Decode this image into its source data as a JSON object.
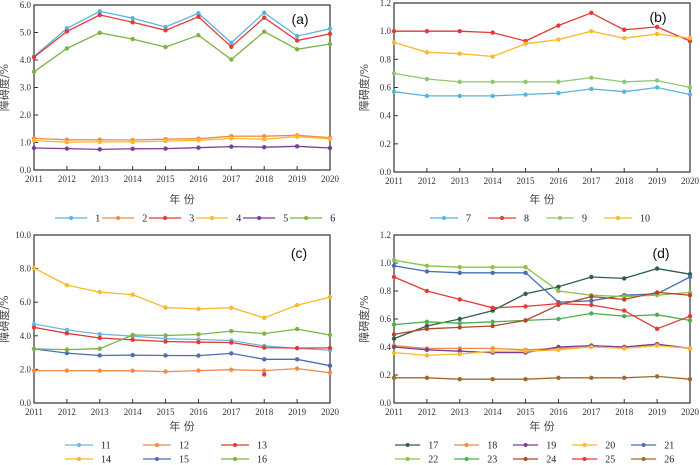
{
  "chart_data": [
    {
      "type": "line",
      "panel_label": "(a)",
      "xlabel": "年 份",
      "ylabel": "障碍度/%",
      "ylim": [
        0,
        6
      ],
      "yticks": [
        "0.0",
        "1.0",
        "2.0",
        "3.0",
        "4.0",
        "5.0",
        "6.0"
      ],
      "ytick_values": [
        0,
        1,
        2,
        3,
        4,
        5,
        6
      ],
      "categories": [
        "2011",
        "2012",
        "2013",
        "2014",
        "2015",
        "2016",
        "2017",
        "2018",
        "2019",
        "2020"
      ],
      "legend_position": "bottom",
      "legend_rows": 1,
      "series": [
        {
          "name": "1",
          "color": "#5bb4e0",
          "values": [
            4.13,
            5.15,
            5.77,
            5.52,
            5.2,
            5.7,
            4.63,
            5.72,
            4.87,
            5.14
          ]
        },
        {
          "name": "2",
          "color": "#f08a4b",
          "values": [
            1.15,
            1.1,
            1.1,
            1.09,
            1.12,
            1.14,
            1.23,
            1.23,
            1.26,
            1.18
          ]
        },
        {
          "name": "3",
          "color": "#e53935",
          "values": [
            4.1,
            5.04,
            5.64,
            5.37,
            5.08,
            5.57,
            4.48,
            5.54,
            4.71,
            4.95
          ]
        },
        {
          "name": "4",
          "color": "#fbb829",
          "values": [
            1.07,
            1.01,
            1.02,
            1.02,
            1.05,
            1.08,
            1.15,
            1.12,
            1.21,
            1.13
          ]
        },
        {
          "name": "5",
          "color": "#7b3f98",
          "values": [
            0.8,
            0.78,
            0.75,
            0.77,
            0.78,
            0.81,
            0.85,
            0.83,
            0.86,
            0.8
          ]
        },
        {
          "name": "6",
          "color": "#7cb342",
          "values": [
            3.57,
            4.42,
            4.99,
            4.76,
            4.47,
            4.9,
            4.02,
            5.03,
            4.39,
            4.58
          ]
        }
      ]
    },
    {
      "type": "line",
      "panel_label": "(b)",
      "xlabel": "年 份",
      "ylabel": "障碍度/%",
      "ylim": [
        0,
        1.2
      ],
      "yticks": [
        "0.0",
        "0.2",
        "0.4",
        "0.6",
        "0.8",
        "1.0",
        "1.2"
      ],
      "ytick_values": [
        0,
        0.2,
        0.4,
        0.6,
        0.8,
        1.0,
        1.2
      ],
      "categories": [
        "2011",
        "2012",
        "2013",
        "2014",
        "2015",
        "2016",
        "2017",
        "2018",
        "2019",
        "2020"
      ],
      "legend_position": "bottom",
      "legend_rows": 1,
      "series": [
        {
          "name": "7",
          "color": "#5bb4e0",
          "values": [
            0.57,
            0.54,
            0.54,
            0.54,
            0.55,
            0.56,
            0.59,
            0.57,
            0.6,
            0.55
          ]
        },
        {
          "name": "8",
          "color": "#e53935",
          "values": [
            1.0,
            1.0,
            1.0,
            0.99,
            0.93,
            1.04,
            1.13,
            1.01,
            1.03,
            0.93
          ]
        },
        {
          "name": "9",
          "color": "#8ec86e",
          "values": [
            0.7,
            0.66,
            0.64,
            0.64,
            0.64,
            0.64,
            0.67,
            0.64,
            0.65,
            0.6
          ]
        },
        {
          "name": "10",
          "color": "#fbb829",
          "values": [
            0.92,
            0.85,
            0.84,
            0.82,
            0.91,
            0.94,
            1.0,
            0.95,
            0.98,
            0.95
          ]
        }
      ]
    },
    {
      "type": "line",
      "panel_label": "(c)",
      "xlabel": "年 份",
      "ylabel": "障碍度/%",
      "ylim": [
        0,
        10
      ],
      "yticks": [
        "0.0",
        "2.0",
        "4.0",
        "6.0",
        "8.0",
        "10.0"
      ],
      "ytick_values": [
        0,
        2,
        4,
        6,
        8,
        10
      ],
      "categories": [
        "2011",
        "2012",
        "2013",
        "2014",
        "2015",
        "2016",
        "2017",
        "2018",
        "2019",
        "2020"
      ],
      "legend_position": "bottom",
      "legend_rows": 2,
      "series": [
        {
          "name": "11",
          "color": "#6cb7e6",
          "values": [
            4.7,
            4.35,
            4.1,
            3.98,
            3.83,
            3.78,
            3.72,
            3.4,
            3.25,
            3.15
          ]
        },
        {
          "name": "12",
          "color": "#f08a4b",
          "values": [
            1.93,
            1.93,
            1.92,
            1.92,
            1.87,
            1.93,
            1.98,
            1.93,
            2.05,
            1.8
          ]
        },
        {
          "name": "13",
          "color": "#e53935",
          "values": [
            4.5,
            4.15,
            3.87,
            3.76,
            3.66,
            3.62,
            3.6,
            3.3,
            3.27,
            3.28
          ]
        },
        {
          "name": "14",
          "color": "#fbb829",
          "values": [
            8.03,
            7.02,
            6.6,
            6.45,
            5.68,
            5.6,
            5.67,
            5.07,
            5.83,
            6.3
          ]
        },
        {
          "name": "15",
          "color": "#4a6fb5",
          "values": [
            3.22,
            2.97,
            2.83,
            2.85,
            2.83,
            2.82,
            2.95,
            2.6,
            2.6,
            2.22
          ]
        },
        {
          "name": "16",
          "color": "#7cb342",
          "values": [
            3.22,
            3.18,
            3.23,
            4.05,
            4.02,
            4.08,
            4.28,
            4.13,
            4.4,
            4.05
          ]
        }
      ],
      "stray_point": {
        "x": "2018",
        "y": 1.7,
        "color": "#e53935"
      }
    },
    {
      "type": "line",
      "panel_label": "(d)",
      "xlabel": "年 份",
      "ylabel": "障碍度/%",
      "ylim": [
        0,
        1.2
      ],
      "yticks": [
        "0.0",
        "0.2",
        "0.4",
        "0.6",
        "0.8",
        "1.0",
        "1.2"
      ],
      "ytick_values": [
        0,
        0.2,
        0.4,
        0.6,
        0.8,
        1.0,
        1.2
      ],
      "categories": [
        "2011",
        "2012",
        "2013",
        "2014",
        "2015",
        "2016",
        "2017",
        "2018",
        "2019",
        "2020"
      ],
      "legend_position": "bottom",
      "legend_rows": 2,
      "series": [
        {
          "name": "17",
          "color": "#2e5e4e",
          "values": [
            0.46,
            0.55,
            0.6,
            0.66,
            0.78,
            0.83,
            0.9,
            0.89,
            0.96,
            0.92
          ]
        },
        {
          "name": "18",
          "color": "#f08a4b",
          "values": [
            0.41,
            0.39,
            0.39,
            0.39,
            0.38,
            0.39,
            0.41,
            0.4,
            0.42,
            0.39
          ]
        },
        {
          "name": "19",
          "color": "#7b3f98",
          "values": [
            0.4,
            0.38,
            0.37,
            0.36,
            0.36,
            0.4,
            0.41,
            0.4,
            0.42,
            0.39
          ]
        },
        {
          "name": "20",
          "color": "#fbb829",
          "values": [
            0.36,
            0.34,
            0.35,
            0.37,
            0.37,
            0.38,
            0.4,
            0.39,
            0.41,
            0.39
          ]
        },
        {
          "name": "21",
          "color": "#4a6fb5",
          "values": [
            0.98,
            0.94,
            0.93,
            0.93,
            0.93,
            0.72,
            0.73,
            0.77,
            0.78,
            0.9
          ]
        },
        {
          "name": "22",
          "color": "#8bc34a",
          "values": [
            1.02,
            0.98,
            0.97,
            0.97,
            0.97,
            0.8,
            0.77,
            0.76,
            0.77,
            0.79
          ]
        },
        {
          "name": "23",
          "color": "#4caf50",
          "values": [
            0.56,
            0.58,
            0.57,
            0.58,
            0.59,
            0.6,
            0.64,
            0.62,
            0.63,
            0.59
          ]
        },
        {
          "name": "24",
          "color": "#b5462a",
          "values": [
            0.49,
            0.53,
            0.54,
            0.55,
            0.59,
            0.7,
            0.76,
            0.74,
            0.79,
            0.77
          ]
        },
        {
          "name": "25",
          "color": "#e53935",
          "values": [
            0.9,
            0.8,
            0.74,
            0.68,
            0.69,
            0.71,
            0.7,
            0.66,
            0.53,
            0.62
          ]
        },
        {
          "name": "26",
          "color": "#a0692e",
          "values": [
            0.18,
            0.18,
            0.17,
            0.17,
            0.17,
            0.18,
            0.18,
            0.18,
            0.19,
            0.17
          ]
        }
      ]
    }
  ]
}
